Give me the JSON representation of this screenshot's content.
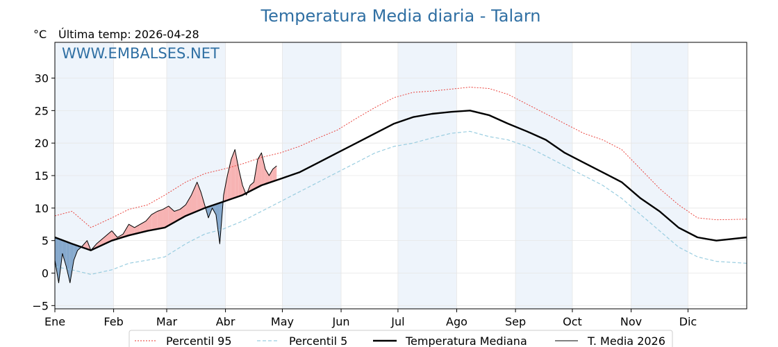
{
  "chart_data": {
    "type": "line",
    "title": "Temperatura Media diaria - Talarn",
    "ylabel": "°C",
    "subtitle": "Última temp: 2026-04-28",
    "watermark": "WWW.EMBALSES.NET",
    "ylim": [
      -5.5,
      35.5
    ],
    "xlim": [
      1,
      366
    ],
    "yticks": [
      -5,
      0,
      5,
      10,
      15,
      20,
      25,
      30
    ],
    "ytick_labels": [
      "−5",
      "0",
      "5",
      "10",
      "15",
      "20",
      "25",
      "30"
    ],
    "months": [
      "Ene",
      "Feb",
      "Mar",
      "Abr",
      "May",
      "Jun",
      "Jul",
      "Ago",
      "Sep",
      "Oct",
      "Nov",
      "Dic"
    ],
    "month_start_days": [
      1,
      32,
      60,
      91,
      121,
      152,
      182,
      213,
      244,
      274,
      305,
      335
    ],
    "grid": true,
    "legend_position": "bottom-center",
    "colors": {
      "p95": "#e8302a",
      "p5": "#99cde0",
      "median": "#000000",
      "current": "#000000",
      "above_fill": "#f7b3b3",
      "below_fill": "#86a9cd",
      "band": "#eef4fb",
      "title": "#2f6fa3"
    },
    "series": [
      {
        "key": "p95",
        "name": "Percentil 95",
        "x": [
          1,
          10,
          20,
          31,
          40,
          50,
          59,
          70,
          80,
          90,
          100,
          110,
          120,
          130,
          140,
          150,
          160,
          170,
          180,
          190,
          200,
          210,
          220,
          230,
          240,
          250,
          260,
          270,
          280,
          290,
          300,
          310,
          320,
          330,
          340,
          350,
          366
        ],
        "y": [
          8.8,
          9.5,
          7.0,
          8.5,
          9.8,
          10.5,
          12.0,
          14.0,
          15.3,
          16.0,
          16.8,
          17.8,
          18.5,
          19.5,
          20.8,
          22.0,
          23.8,
          25.5,
          27.0,
          27.8,
          28.0,
          28.3,
          28.6,
          28.4,
          27.5,
          26.0,
          24.5,
          23.0,
          21.5,
          20.5,
          19.0,
          16.0,
          13.0,
          10.5,
          8.5,
          8.2,
          8.3
        ]
      },
      {
        "key": "p5",
        "name": "Percentil 5",
        "x": [
          1,
          10,
          20,
          31,
          40,
          50,
          59,
          70,
          80,
          90,
          100,
          110,
          120,
          130,
          140,
          150,
          160,
          170,
          180,
          190,
          200,
          210,
          220,
          230,
          240,
          250,
          260,
          270,
          280,
          290,
          300,
          310,
          320,
          330,
          340,
          350,
          366
        ],
        "y": [
          1.0,
          0.5,
          -0.2,
          0.5,
          1.5,
          2.0,
          2.5,
          4.5,
          6.0,
          6.8,
          8.0,
          9.5,
          11.0,
          12.5,
          14.0,
          15.5,
          17.0,
          18.5,
          19.5,
          20.0,
          20.8,
          21.5,
          21.8,
          21.0,
          20.5,
          19.5,
          18.0,
          16.5,
          15.0,
          13.5,
          11.5,
          9.0,
          6.5,
          4.0,
          2.5,
          1.8,
          1.5
        ]
      },
      {
        "key": "median",
        "name": "Temperatura Mediana",
        "x": [
          1,
          10,
          20,
          31,
          40,
          50,
          59,
          70,
          80,
          90,
          100,
          110,
          120,
          130,
          140,
          150,
          160,
          170,
          180,
          190,
          200,
          210,
          220,
          230,
          240,
          250,
          260,
          270,
          280,
          290,
          300,
          310,
          320,
          330,
          340,
          350,
          366
        ],
        "y": [
          5.5,
          4.5,
          3.5,
          5.0,
          5.8,
          6.5,
          7.0,
          8.8,
          10.0,
          11.0,
          12.0,
          13.5,
          14.5,
          15.5,
          17.0,
          18.5,
          20.0,
          21.5,
          23.0,
          24.0,
          24.5,
          24.8,
          25.0,
          24.3,
          23.0,
          21.8,
          20.5,
          18.5,
          17.0,
          15.5,
          14.0,
          11.5,
          9.5,
          7.0,
          5.5,
          5.0,
          5.5
        ]
      },
      {
        "key": "current",
        "name": "T. Media 2026",
        "x": [
          1,
          3,
          5,
          7,
          9,
          11,
          13,
          15,
          18,
          20,
          23,
          27,
          31,
          34,
          37,
          40,
          43,
          46,
          49,
          52,
          55,
          58,
          61,
          64,
          67,
          70,
          73,
          76,
          78,
          80,
          82,
          84,
          86,
          88,
          90,
          92,
          94,
          96,
          98,
          100,
          102,
          104,
          106,
          108,
          110,
          112,
          114,
          116,
          118
        ],
        "y": [
          2.0,
          -1.5,
          3.0,
          1.0,
          -1.5,
          2.0,
          3.5,
          4.0,
          5.0,
          3.5,
          4.5,
          5.5,
          6.5,
          5.5,
          6.0,
          7.5,
          7.0,
          7.5,
          8.0,
          9.0,
          9.5,
          9.8,
          10.3,
          9.5,
          9.8,
          10.5,
          12.0,
          14.0,
          12.5,
          10.5,
          8.5,
          10.0,
          9.0,
          4.5,
          12.0,
          15.0,
          17.5,
          19.0,
          16.0,
          13.5,
          12.0,
          13.5,
          14.0,
          17.5,
          18.5,
          16.0,
          15.0,
          16.0,
          16.5
        ]
      }
    ],
    "legend": [
      "Percentil 95",
      "Percentil 5",
      "Temperatura Mediana",
      "T. Media 2026"
    ]
  }
}
